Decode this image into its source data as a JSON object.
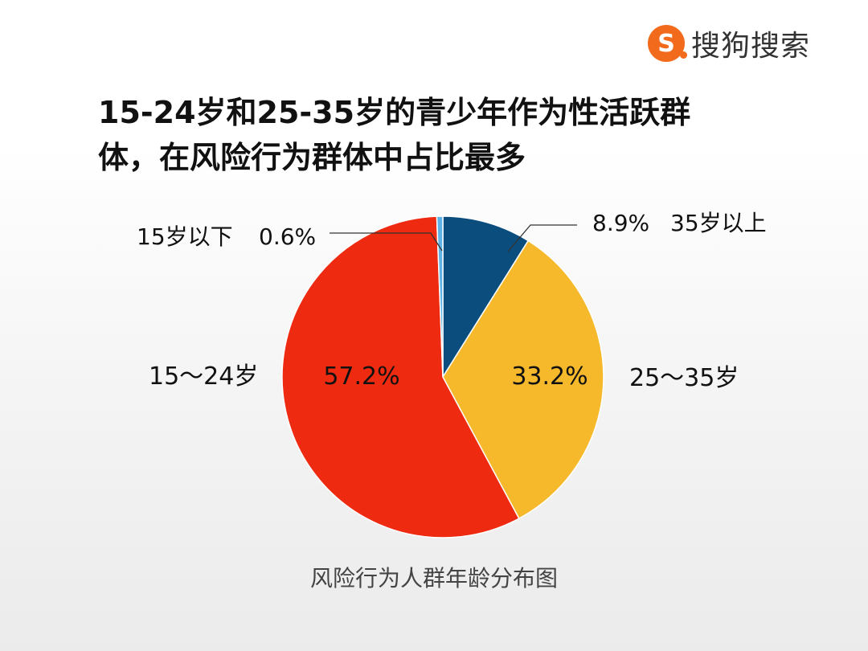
{
  "logo": {
    "text": "搜狗搜索",
    "mark": "S"
  },
  "title_lines": [
    "15-24岁和25-35岁的青少年作为性活跃群",
    "体，在风险行为群体中占比最多"
  ],
  "caption": "风险行为人群年龄分布图",
  "colors": {
    "under15": "#5fb2e6",
    "over35": "#0b4d7c",
    "age25_35": "#f6b92c",
    "age15_24": "#ee2a10"
  },
  "chart_data": {
    "type": "pie",
    "slices": [
      {
        "key": "over35",
        "category": "35岁以上",
        "value": 8.9,
        "label": "8.9%",
        "color": "#0b4d7c"
      },
      {
        "key": "age25_35",
        "category": "25～35岁",
        "value": 33.2,
        "label": "33.2%",
        "color": "#f6b92c"
      },
      {
        "key": "age15_24",
        "category": "15～24岁",
        "value": 57.2,
        "label": "57.2%",
        "color": "#ee2a10"
      },
      {
        "key": "under15",
        "category": "15岁以下",
        "value": 0.6,
        "label": "0.6%",
        "color": "#5fb2e6"
      }
    ],
    "title": "风险行为人群年龄分布图"
  }
}
